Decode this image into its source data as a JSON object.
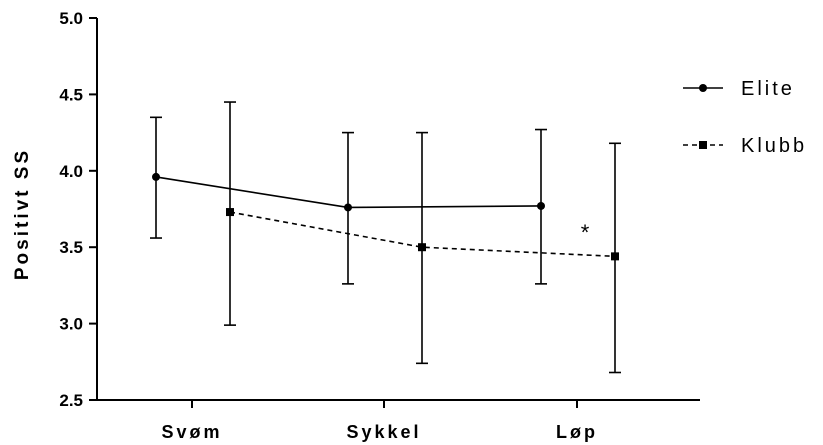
{
  "chart_data": {
    "type": "line",
    "ylabel": "Positivt SS",
    "xlabel": "",
    "categories": [
      "Svøm",
      "Sykkel",
      "Løp"
    ],
    "ylim": [
      2.5,
      5.0
    ],
    "yticks": [
      "2.5",
      "3.0",
      "3.5",
      "4.0",
      "4.5",
      "5.0"
    ],
    "grid": false,
    "legend_position": "right",
    "series": [
      {
        "name": "Elite",
        "style": "solid",
        "marker": "circle",
        "color": "#000000",
        "values": [
          3.96,
          3.76,
          3.77
        ],
        "error_low": [
          3.56,
          3.26,
          3.26
        ],
        "error_high": [
          4.35,
          4.25,
          4.27
        ]
      },
      {
        "name": "Klubb",
        "style": "dashed",
        "marker": "square",
        "color": "#000000",
        "values": [
          3.73,
          3.5,
          3.44
        ],
        "error_low": [
          2.99,
          2.74,
          2.68
        ],
        "error_high": [
          4.45,
          4.25,
          4.18
        ]
      }
    ],
    "annotations": [
      {
        "text": "*",
        "category": "Løp"
      }
    ]
  }
}
